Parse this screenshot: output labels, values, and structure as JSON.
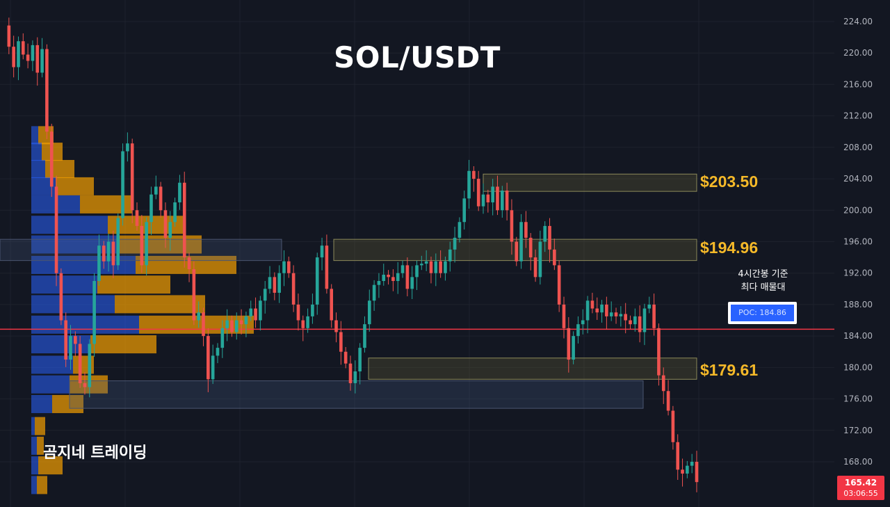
{
  "title": "SOL/USDT",
  "watermark": "곰지네 트레이딩",
  "note_line1": "4시간봉 기준",
  "note_line2": "최다 매물대",
  "poc_label": "POC: 184.86",
  "current_price": "165.42",
  "countdown": "03:06:55",
  "level_labels": [
    "$203.50",
    "$194.96",
    "$179.61"
  ],
  "colors": {
    "background": "#131722",
    "up": "#26a69a",
    "down": "#ef5350",
    "poc_line": "#f23645",
    "label": "#f5b929",
    "volume_blue": "#2962ff",
    "volume_orange": "#f59f00"
  },
  "chart_data": {
    "type": "candlestick",
    "title": "SOL/USDT",
    "ylim": [
      163,
      226
    ],
    "y_ticks": [
      "224.00",
      "220.00",
      "216.00",
      "212.00",
      "208.00",
      "204.00",
      "200.00",
      "196.00",
      "192.00",
      "188.00",
      "184.00",
      "180.00",
      "176.00",
      "172.00",
      "168.00"
    ],
    "poc": 184.86,
    "current_price": 165.42,
    "resistance_zones": [
      {
        "label": "$203.50",
        "low": 202.4,
        "high": 204.6
      },
      {
        "label": "$194.96",
        "low": 193.6,
        "high": 196.3
      },
      {
        "label": "$179.61",
        "low": 178.5,
        "high": 181.2
      }
    ],
    "closes": [
      223.5,
      220.8,
      218.2,
      221.5,
      219.8,
      219.0,
      221.0,
      217.5,
      220.5,
      210.0,
      203.0,
      192.0,
      186.0,
      181.0,
      184.0,
      183.0,
      178.0,
      177.5,
      183.0,
      191.0,
      195.5,
      193.5,
      196.0,
      193.0,
      199.0,
      207.5,
      208.5,
      200.0,
      198.0,
      193.0,
      198.5,
      202.0,
      203.0,
      200.0,
      196.5,
      198.5,
      201.0,
      203.5,
      194.0,
      192.5,
      186.0,
      187.0,
      184.0,
      178.5,
      181.5,
      182.5,
      185.0,
      186.0,
      184.5,
      186.0,
      185.5,
      186.5,
      187.5,
      186.0,
      188.5,
      190.0,
      191.5,
      189.5,
      192.0,
      193.5,
      192.0,
      188.0,
      186.0,
      185.0,
      186.5,
      188.0,
      194.0,
      195.5,
      190.0,
      186.0,
      184.5,
      182.0,
      180.5,
      178.0,
      179.5,
      182.5,
      185.5,
      188.5,
      190.5,
      191.0,
      191.8,
      191.5,
      191.0,
      192.0,
      193.0,
      190.0,
      191.5,
      193.0,
      193.2,
      193.5,
      192.0,
      193.5,
      192.0,
      193.5,
      195.0,
      196.5,
      198.5,
      201.5,
      205.0,
      204.0,
      200.5,
      202.0,
      201.0,
      203.0,
      200.0,
      202.5,
      200.0,
      196.0,
      193.5,
      198.5,
      196.5,
      194.0,
      191.5,
      196.0,
      198.0,
      195.0,
      193.0,
      188.0,
      185.0,
      181.0,
      184.0,
      185.5,
      186.0,
      188.5,
      187.5,
      187.0,
      188.0,
      186.5,
      187.0,
      186.5,
      186.8,
      186.0,
      185.5,
      186.5,
      184.5,
      187.5,
      188.0,
      185.0,
      179.0,
      177.0,
      174.5,
      170.5,
      167.0,
      166.5,
      167.5,
      168.0,
      165.42
    ],
    "volume_profile": [
      {
        "price": 209.5,
        "blue": 10,
        "orange": 22
      },
      {
        "price": 207.4,
        "blue": 15,
        "orange": 30
      },
      {
        "price": 205.2,
        "blue": 20,
        "orange": 42
      },
      {
        "price": 203.0,
        "blue": 35,
        "orange": 55
      },
      {
        "price": 200.7,
        "blue": 70,
        "orange": 75
      },
      {
        "price": 198.1,
        "blue": 110,
        "orange": 110
      },
      {
        "price": 195.6,
        "blue": 125,
        "orange": 120
      },
      {
        "price": 193.0,
        "blue": 150,
        "orange": 145
      },
      {
        "price": 190.5,
        "blue": 95,
        "orange": 105
      },
      {
        "price": 188.0,
        "blue": 120,
        "orange": 130
      },
      {
        "price": 185.4,
        "blue": 155,
        "orange": 165
      },
      {
        "price": 182.9,
        "blue": 85,
        "orange": 95
      },
      {
        "price": 180.3,
        "blue": 60,
        "orange": 30
      },
      {
        "price": 177.8,
        "blue": 55,
        "orange": 55
      },
      {
        "price": 175.3,
        "blue": 30,
        "orange": 45
      },
      {
        "price": 172.5,
        "blue": 5,
        "orange": 15
      },
      {
        "price": 170.0,
        "blue": 8,
        "orange": 10
      },
      {
        "price": 167.5,
        "blue": 10,
        "orange": 35
      },
      {
        "price": 165.0,
        "blue": 8,
        "orange": 15
      }
    ]
  }
}
